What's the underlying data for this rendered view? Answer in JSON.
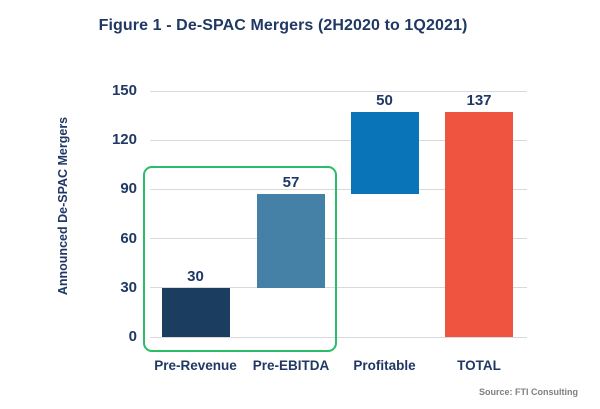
{
  "chart_data": {
    "type": "bar",
    "subtype": "waterfall",
    "title": "Figure 1 - De-SPAC Mergers (2H2020 to 1Q2021)",
    "ylabel": "Announced De-SPAC Mergers",
    "xlabel": "",
    "ylim": [
      0,
      150
    ],
    "yticks": [
      0,
      30,
      60,
      90,
      120,
      150
    ],
    "grid": true,
    "legend": "none",
    "categories": [
      "Pre-Revenue",
      "Pre-EBITDA",
      "Profitable",
      "TOTAL"
    ],
    "values": [
      30,
      57,
      50,
      137
    ],
    "segment_start": [
      0,
      30,
      87,
      0
    ],
    "value_labels": [
      "30",
      "57",
      "50",
      "137"
    ],
    "bar_colors": [
      "#1b3d5f",
      "#4581a7",
      "#0a74b8",
      "#ef5440"
    ],
    "annotation": {
      "type": "highlight-box",
      "covers": [
        "Pre-Revenue",
        "Pre-EBITDA"
      ],
      "border_color": "#2abc68"
    },
    "source": "Source: FTI Consulting"
  },
  "colors": {
    "text_navy": "#1f3864",
    "gridline": "#d9d9d9",
    "source_gray": "#7f7f7f",
    "background": "#ffffff"
  }
}
